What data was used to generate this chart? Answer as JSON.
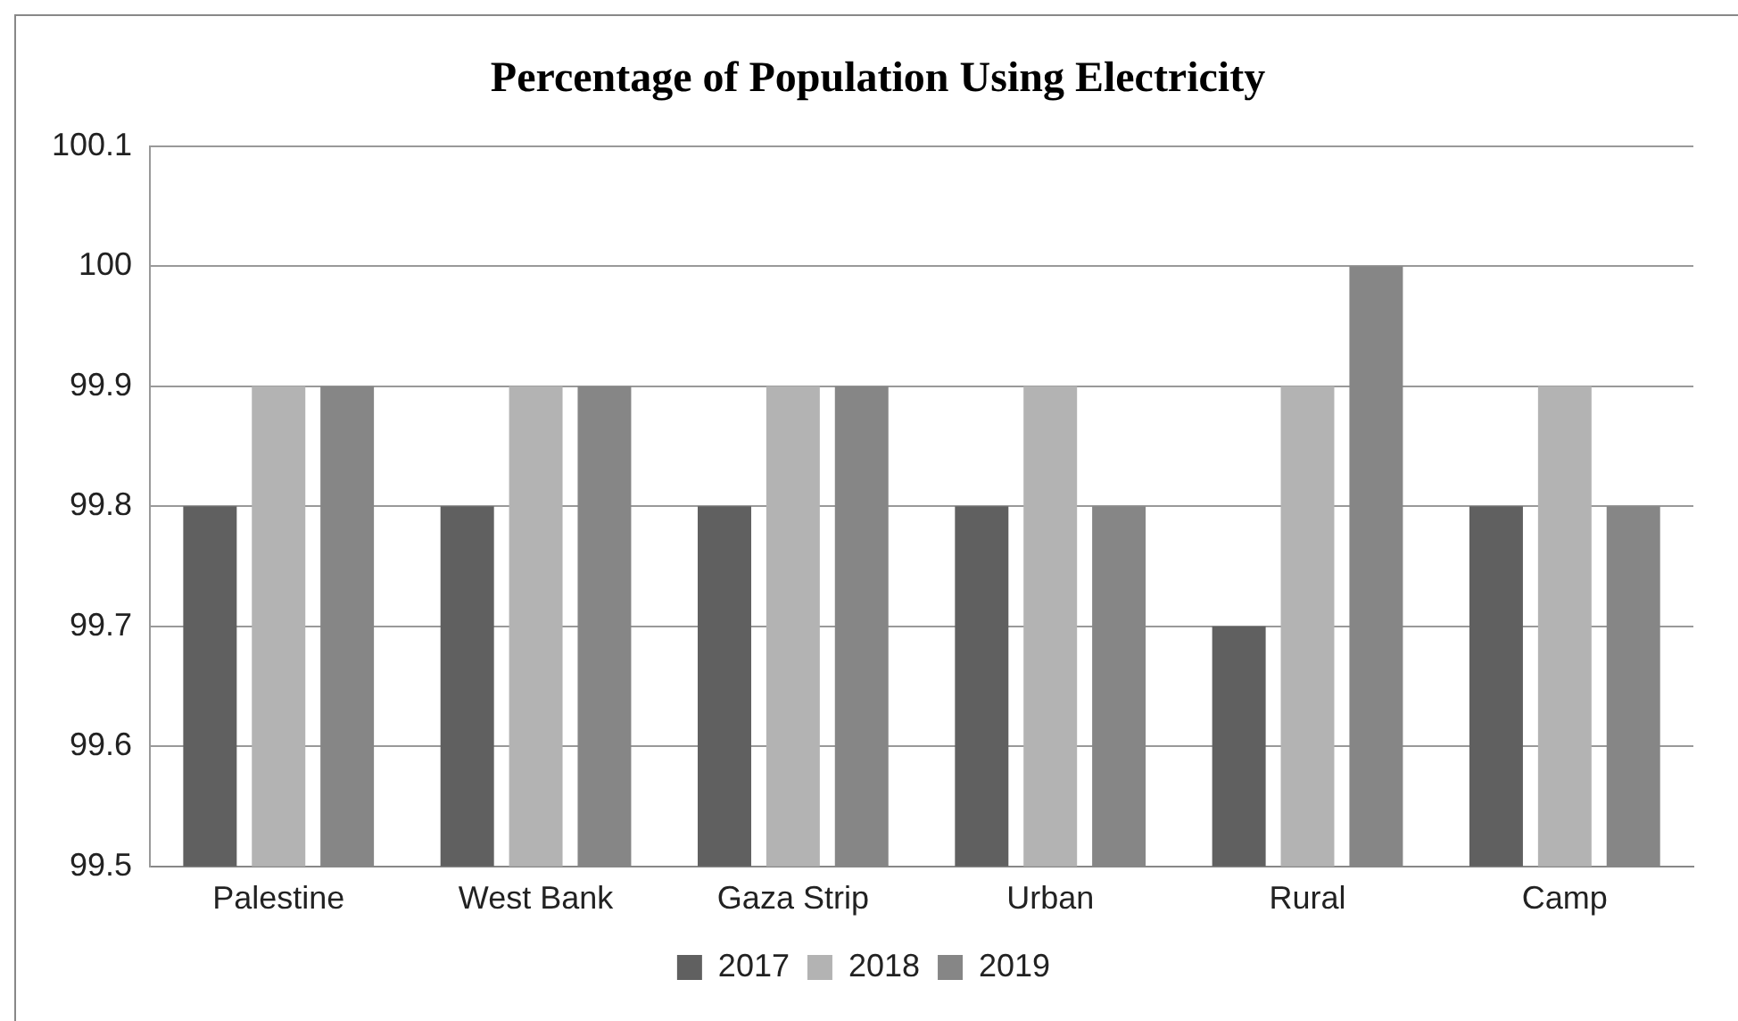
{
  "chart_data": {
    "type": "bar",
    "title": "Percentage of  Population Using  Electricity",
    "categories": [
      "Palestine",
      "West Bank",
      "Gaza Strip",
      "Urban",
      "Rural",
      "Camp"
    ],
    "series": [
      {
        "name": "2017",
        "color": "#606060",
        "values": [
          99.8,
          99.8,
          99.8,
          99.8,
          99.7,
          99.8
        ]
      },
      {
        "name": "2018",
        "color": "#b3b3b3",
        "values": [
          99.9,
          99.9,
          99.9,
          99.9,
          99.9,
          99.9
        ]
      },
      {
        "name": "2019",
        "color": "#868686",
        "values": [
          99.9,
          99.9,
          99.9,
          99.8,
          100,
          99.8
        ]
      }
    ],
    "ylim": [
      99.5,
      100.1
    ],
    "yticks": [
      99.5,
      99.6,
      99.7,
      99.8,
      99.9,
      100,
      100.1
    ],
    "grid": "y",
    "legend": "bottom"
  }
}
